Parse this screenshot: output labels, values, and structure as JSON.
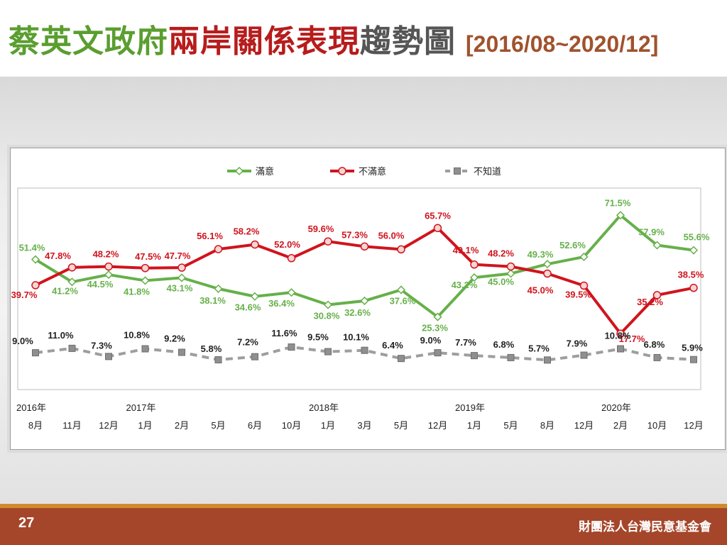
{
  "header": {
    "title_part1": "蔡英文政府",
    "title_part2": "兩岸關係表現",
    "title_part3": "趨勢圖",
    "date_range": "[2016/08~2020/12]"
  },
  "footer": {
    "page_number": "27",
    "organization": "財團法人台灣民意基金會"
  },
  "colors": {
    "satisfied": "#66b04a",
    "dissatisfied": "#d0141d",
    "unknown": "#9e9e9e"
  },
  "chart_data": {
    "type": "line",
    "categories": [
      "8月",
      "11月",
      "12月",
      "1月",
      "2月",
      "5月",
      "6月",
      "10月",
      "1月",
      "3月",
      "5月",
      "12月",
      "1月",
      "5月",
      "8月",
      "12月",
      "2月",
      "10月",
      "12月"
    ],
    "year_labels": [
      {
        "index": 0,
        "label": "2016年"
      },
      {
        "index": 3,
        "label": "2017年"
      },
      {
        "index": 8,
        "label": "2018年"
      },
      {
        "index": 12,
        "label": "2019年"
      },
      {
        "index": 16,
        "label": "2020年"
      }
    ],
    "series": [
      {
        "name": "滿意",
        "color": "#66b04a",
        "marker": "diamond",
        "dashed": false,
        "values": [
          51.4,
          41.2,
          44.5,
          41.8,
          43.1,
          38.1,
          34.6,
          36.4,
          30.8,
          32.6,
          37.6,
          25.3,
          43.2,
          45.0,
          49.3,
          52.6,
          71.5,
          57.9,
          55.6
        ],
        "labels": [
          "51.4%",
          "41.2%",
          "44.5%",
          "41.8%",
          "43.1%",
          "38.1%",
          "34.6%",
          "36.4%",
          "30.8%",
          "32.6%",
          "37.6%",
          "25.3%",
          "43.2%",
          "45.0%",
          "49.3%",
          "52.6%",
          "71.5%",
          "57.9%",
          "55.6%"
        ]
      },
      {
        "name": "不滿意",
        "color": "#d0141d",
        "marker": "circle",
        "dashed": false,
        "values": [
          39.7,
          47.8,
          48.2,
          47.5,
          47.7,
          56.1,
          58.2,
          52.0,
          59.6,
          57.3,
          56.0,
          65.7,
          49.1,
          48.2,
          45.0,
          39.5,
          17.7,
          35.2,
          38.5
        ],
        "labels": [
          "39.7%",
          "47.8%",
          "48.2%",
          "47.5%",
          "47.7%",
          "56.1%",
          "58.2%",
          "52.0%",
          "59.6%",
          "57.3%",
          "56.0%",
          "65.7%",
          "49.1%",
          "48.2%",
          "45.0%",
          "39.5%",
          "17.7%",
          "35.2%",
          "38.5%"
        ]
      },
      {
        "name": "不知道",
        "color": "#9e9e9e",
        "marker": "square",
        "dashed": true,
        "values": [
          9.0,
          11.0,
          7.3,
          10.8,
          9.2,
          5.8,
          7.2,
          11.6,
          9.5,
          10.1,
          6.4,
          9.0,
          7.7,
          6.8,
          5.7,
          7.9,
          10.8,
          6.8,
          5.9
        ],
        "labels": [
          "9.0%",
          "11.0%",
          "7.3%",
          "10.8%",
          "9.2%",
          "5.8%",
          "7.2%",
          "11.6%",
          "9.5%",
          "10.1%",
          "6.4%",
          "9.0%",
          "7.7%",
          "6.8%",
          "5.7%",
          "7.9%",
          "10.8%",
          "6.8%",
          "5.9%"
        ]
      }
    ],
    "legend_position": "top-center",
    "grid": false
  }
}
